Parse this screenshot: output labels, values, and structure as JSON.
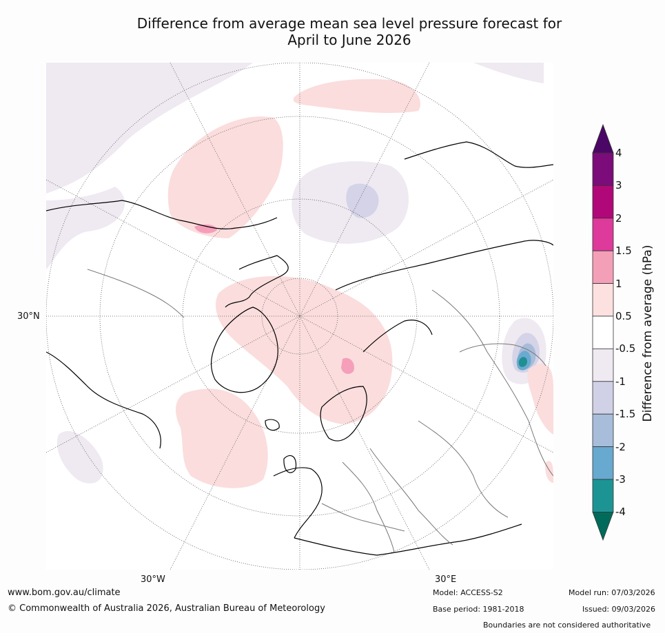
{
  "title": {
    "line1": "Difference from average mean sea level pressure forecast for",
    "line2": "April to June 2026"
  },
  "map": {
    "labels": {
      "lat_left": "30°N",
      "lon_left": "30°W",
      "lon_right": "30°E"
    },
    "colors": {
      "ocean": "#ffffff",
      "pos_0_5_1": "#fbdddd",
      "pos_1_1_5": "#f59fbb",
      "pos_1_5_2": "#e03fa0",
      "neg_0_5_1": "#efe9f1",
      "neg_1_1_5": "#d4d3e7",
      "neg_1_5_2": "#a8bcd9",
      "neg_2_3": "#6aaad0",
      "neg_3_4": "#1f8f93",
      "coast": "#000000",
      "border": "#777777"
    }
  },
  "colorbar": {
    "title": "Difference from average (hPa)",
    "ticks": [
      "4",
      "3",
      "2",
      "1.5",
      "1",
      "0.5",
      "-0.5",
      "-1",
      "-1.5",
      "-2",
      "-3",
      "-4"
    ],
    "colors": [
      "#4b0766",
      "#7c0c7a",
      "#b10879",
      "#de3a9b",
      "#f49fb8",
      "#fde1e1",
      "#ffffff",
      "#efe9f1",
      "#d0d1e6",
      "#a7bdda",
      "#67a9cf",
      "#1d9494",
      "#006b5b"
    ]
  },
  "footer": {
    "website": "www.bom.gov.au/climate",
    "copyright": "© Commonwealth of Australia 2026, Australian Bureau of Meteorology",
    "model": "Model: ACCESS-S2",
    "model_run": "Model run: 07/03/2026",
    "base_period": "Base period: 1981-2018",
    "issued": "Issued: 09/03/2026",
    "disclaimer": "Boundaries are not considered authoritative"
  }
}
